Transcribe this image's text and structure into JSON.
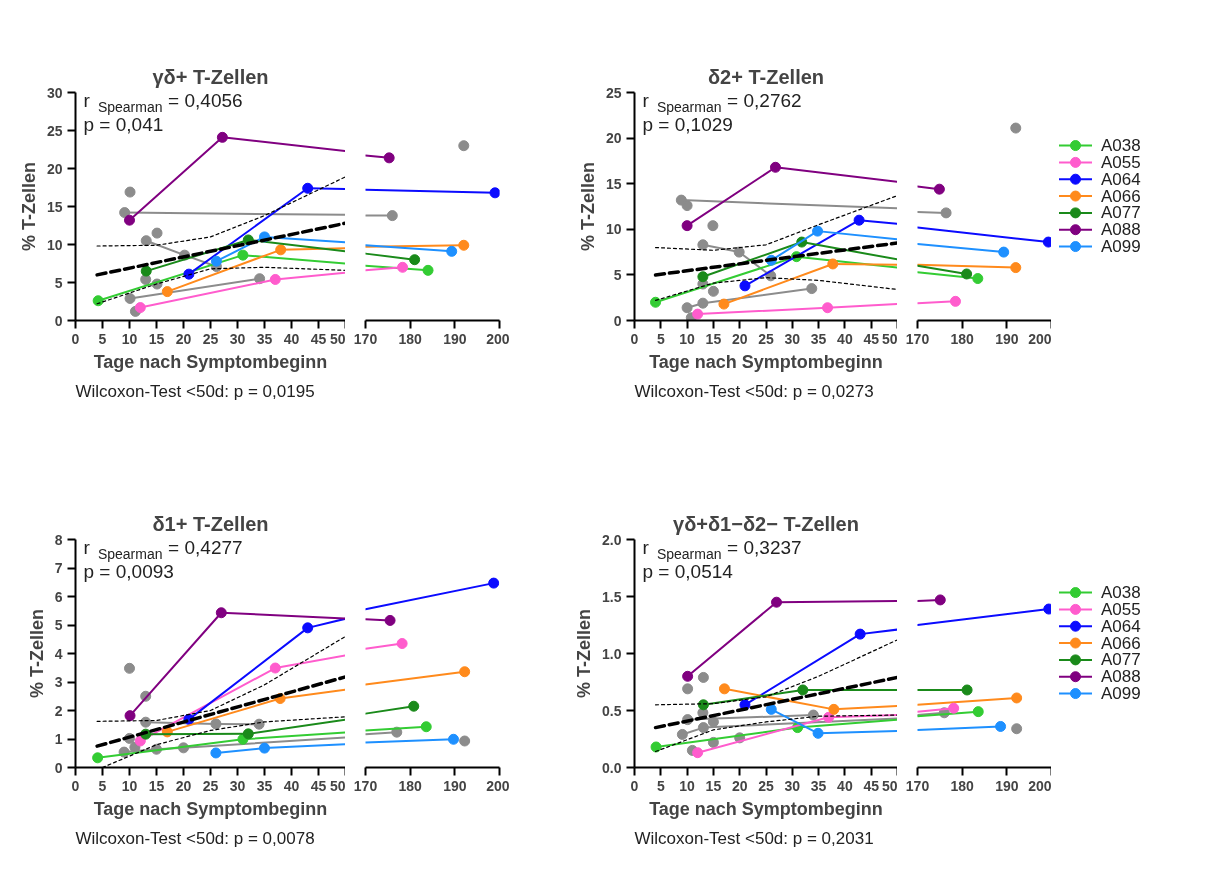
{
  "chart_data": [
    {
      "type": "line",
      "title": "γδ+ T-Zellen",
      "xlabel": "Tage nach Symptombeginn",
      "ylabel": "% T-Zellen",
      "annotations": [
        "r$_{Spearman}$ = 0,4056",
        "p = 0,041",
        "Wilcoxon-Test <50d: p = 0,0195"
      ],
      "xlim": [
        0,
        50
      ],
      "ylim": [
        0,
        30
      ],
      "xticks": [
        0,
        5,
        10,
        15,
        20,
        25,
        30,
        35,
        40,
        45,
        50
      ],
      "yticks": [
        0,
        5,
        10,
        15,
        20,
        25,
        30
      ],
      "grid": false,
      "series": [
        {
          "type": "scatter",
          "color": "#8c8c8c",
          "x": [
            10.1,
            15.1,
            13,
            15.1,
            11.1,
            9.1
          ],
          "values": [
            16.9,
            11.5,
            5.4,
            4.8,
            1.2,
            14.2
          ],
          "marker": "circle"
        },
        {
          "color": "#8c8c8c",
          "x": [
            9.1,
            50
          ],
          "values": [
            14.2,
            13.9
          ],
          "marker": "none"
        },
        {
          "color": "#8c8c8c",
          "x": [
            13.1,
            20.2,
            26.1
          ],
          "values": [
            10.5,
            8.6,
            7.1
          ],
          "marker": "circle"
        },
        {
          "color": "#8c8c8c",
          "x": [
            10.1,
            34.1
          ],
          "values": [
            2.9,
            5.5
          ],
          "marker": "circle"
        },
        {
          "color": "#33cc33",
          "x": [
            4.2,
            31
          ],
          "values": [
            2.6,
            8.6
          ],
          "marker": "circle"
        },
        {
          "color": "#33cc33",
          "x": [
            31,
            50
          ],
          "values": [
            8.6,
            7.5
          ],
          "marker": "none"
        },
        {
          "color": "#ff5ccd",
          "x": [
            12,
            37
          ],
          "values": [
            1.7,
            5.4
          ],
          "marker": "circle"
        },
        {
          "color": "#ff5ccd",
          "x": [
            37,
            50
          ],
          "values": [
            5.4,
            6.3
          ],
          "marker": "none"
        },
        {
          "color": "#0b0bff",
          "x": [
            21,
            43
          ],
          "values": [
            6.1,
            17.4
          ],
          "marker": "circle"
        },
        {
          "color": "#0b0bff",
          "x": [
            43,
            50
          ],
          "values": [
            17.4,
            17.3
          ],
          "marker": "none"
        },
        {
          "color": "#ff8a1c",
          "x": [
            17,
            38
          ],
          "values": [
            3.8,
            9.3
          ],
          "marker": "circle"
        },
        {
          "color": "#ff8a1c",
          "x": [
            38,
            50
          ],
          "values": [
            9.3,
            9.5
          ],
          "marker": "none"
        },
        {
          "color": "#1a8a1a",
          "x": [
            13.1,
            32
          ],
          "values": [
            6.5,
            10.6
          ],
          "marker": "circle"
        },
        {
          "color": "#1a8a1a",
          "x": [
            32,
            50
          ],
          "values": [
            10.6,
            9.1
          ],
          "marker": "none"
        },
        {
          "color": "#800080",
          "x": [
            10,
            27.2
          ],
          "values": [
            13.2,
            24.1
          ],
          "marker": "circle"
        },
        {
          "color": "#800080",
          "x": [
            27.2,
            50
          ],
          "values": [
            24.1,
            22.3
          ],
          "marker": "none"
        },
        {
          "color": "#1e90ff",
          "x": [
            26.1,
            35
          ],
          "values": [
            7.8,
            11.0
          ],
          "marker": "circle"
        },
        {
          "color": "#1e90ff",
          "x": [
            35,
            50
          ],
          "values": [
            11.0,
            10.3
          ],
          "marker": "none"
        },
        {
          "color": "#000000",
          "x": [
            4,
            50
          ],
          "values": [
            6.0,
            12.8
          ],
          "marker": "none",
          "line_style": "dashed"
        },
        {
          "color": "#000000",
          "x": [
            4,
            15,
            25,
            35,
            50
          ],
          "values": [
            9.8,
            9.9,
            11.0,
            13.8,
            18.9
          ],
          "marker": "none",
          "line_style": "dotted"
        },
        {
          "color": "#000000",
          "x": [
            4,
            15,
            25,
            35,
            50
          ],
          "values": [
            2.2,
            4.8,
            6.8,
            7.0,
            6.6
          ],
          "marker": "none",
          "line_style": "dotted"
        }
      ]
    },
    {
      "type": "line",
      "xlim": [
        170,
        200
      ],
      "ylim": [
        0,
        30
      ],
      "xticks": [
        170,
        180,
        190,
        200
      ],
      "tick_labels": "x",
      "grid": false,
      "series": [
        {
          "type": "scatter",
          "color": "#8c8c8c",
          "x": [
            176,
            192
          ],
          "values": [
            13.8,
            23.0
          ],
          "marker": "circle"
        },
        {
          "color": "#8c8c8c",
          "x": [
            170,
            176
          ],
          "values": [
            13.8,
            13.8
          ],
          "marker": "none"
        },
        {
          "color": "#33cc33",
          "x": [
            170,
            184
          ],
          "values": [
            7.2,
            6.6
          ],
          "marker": "none"
        },
        {
          "color": "#33cc33",
          "x": [
            184
          ],
          "values": [
            6.6
          ],
          "marker": "circle"
        },
        {
          "color": "#ff5ccd",
          "x": [
            170,
            178.3
          ],
          "values": [
            6.6,
            7.0
          ],
          "marker": "none"
        },
        {
          "color": "#ff5ccd",
          "x": [
            178.3
          ],
          "values": [
            7.0
          ],
          "marker": "circle"
        },
        {
          "color": "#0b0bff",
          "x": [
            170,
            199
          ],
          "values": [
            17.2,
            16.8
          ],
          "marker": "none"
        },
        {
          "color": "#0b0bff",
          "x": [
            199
          ],
          "values": [
            16.8
          ],
          "marker": "circle"
        },
        {
          "color": "#ff8a1c",
          "x": [
            170,
            192
          ],
          "values": [
            9.7,
            9.9
          ],
          "marker": "none"
        },
        {
          "color": "#ff8a1c",
          "x": [
            192
          ],
          "values": [
            9.9
          ],
          "marker": "circle"
        },
        {
          "color": "#1a8a1a",
          "x": [
            170,
            181
          ],
          "values": [
            8.8,
            8.0
          ],
          "marker": "none"
        },
        {
          "color": "#1a8a1a",
          "x": [
            181
          ],
          "values": [
            8.0
          ],
          "marker": "circle"
        },
        {
          "color": "#800080",
          "x": [
            170,
            175.3
          ],
          "values": [
            21.7,
            21.4
          ],
          "marker": "none"
        },
        {
          "color": "#800080",
          "x": [
            175.3
          ],
          "values": [
            21.4
          ],
          "marker": "circle"
        },
        {
          "color": "#1e90ff",
          "x": [
            170,
            189.3
          ],
          "values": [
            9.9,
            9.1
          ],
          "marker": "none"
        },
        {
          "color": "#1e90ff",
          "x": [
            189.3
          ],
          "values": [
            9.1
          ],
          "marker": "circle"
        }
      ]
    },
    {
      "type": "line",
      "title": "δ2+ T-Zellen",
      "xlabel": "Tage nach Symptombeginn",
      "ylabel": "% T-Zellen",
      "annotations": [
        "r$_{Spearman}$ = 0,2762",
        "p = 0,1029",
        "Wilcoxon-Test <50d: p = 0,0273"
      ],
      "xlim": [
        0,
        50
      ],
      "ylim": [
        0,
        25
      ],
      "xticks": [
        0,
        5,
        10,
        15,
        20,
        25,
        30,
        35,
        40,
        45,
        50
      ],
      "yticks": [
        0,
        5,
        10,
        15,
        20,
        25
      ],
      "grid": false,
      "series": [
        {
          "type": "scatter",
          "color": "#8c8c8c",
          "x": [
            10,
            14.9,
            13,
            15,
            10.8,
            8.9
          ],
          "values": [
            12.6,
            10.4,
            4.0,
            3.2,
            0.3,
            13.2
          ],
          "marker": "circle"
        },
        {
          "color": "#8c8c8c",
          "x": [
            8.9,
            50
          ],
          "values": [
            13.2,
            12.3
          ],
          "marker": "none"
        },
        {
          "color": "#8c8c8c",
          "x": [
            13,
            19.9,
            25.9
          ],
          "values": [
            8.3,
            7.5,
            4.9
          ],
          "marker": "circle"
        },
        {
          "color": "#8c8c8c",
          "x": [
            10,
            13,
            33.7
          ],
          "values": [
            1.4,
            1.9,
            3.5
          ],
          "marker": "circle"
        },
        {
          "color": "#33cc33",
          "x": [
            4,
            30.8
          ],
          "values": [
            2.0,
            7.0
          ],
          "marker": "circle"
        },
        {
          "color": "#33cc33",
          "x": [
            30.8,
            50
          ],
          "values": [
            7.0,
            5.8
          ],
          "marker": "none"
        },
        {
          "color": "#ff5ccd",
          "x": [
            12,
            36.7
          ],
          "values": [
            0.7,
            1.4
          ],
          "marker": "circle"
        },
        {
          "color": "#ff5ccd",
          "x": [
            36.7,
            50
          ],
          "values": [
            1.4,
            1.8
          ],
          "marker": "none"
        },
        {
          "color": "#0b0bff",
          "x": [
            21,
            42.7
          ],
          "values": [
            3.8,
            11.0
          ],
          "marker": "circle"
        },
        {
          "color": "#0b0bff",
          "x": [
            42.7,
            50
          ],
          "values": [
            11.0,
            10.6
          ],
          "marker": "none"
        },
        {
          "color": "#ff8a1c",
          "x": [
            17,
            37.7
          ],
          "values": [
            1.8,
            6.2
          ],
          "marker": "circle"
        },
        {
          "color": "#ff8a1c",
          "x": [
            37.7,
            50
          ],
          "values": [
            6.2,
            6.1
          ],
          "marker": "none"
        },
        {
          "color": "#1a8a1a",
          "x": [
            13,
            31.8
          ],
          "values": [
            4.8,
            8.6
          ],
          "marker": "circle"
        },
        {
          "color": "#1a8a1a",
          "x": [
            31.8,
            50
          ],
          "values": [
            8.6,
            6.7
          ],
          "marker": "none"
        },
        {
          "color": "#800080",
          "x": [
            10,
            26.8
          ],
          "values": [
            10.4,
            16.8
          ],
          "marker": "circle"
        },
        {
          "color": "#800080",
          "x": [
            26.8,
            50
          ],
          "values": [
            16.8,
            15.2
          ],
          "marker": "none"
        },
        {
          "color": "#1e90ff",
          "x": [
            26,
            34.8
          ],
          "values": [
            6.6,
            9.8
          ],
          "marker": "circle"
        },
        {
          "color": "#1e90ff",
          "x": [
            34.8,
            50
          ],
          "values": [
            9.8,
            8.9
          ],
          "marker": "none"
        },
        {
          "color": "#000000",
          "x": [
            4,
            50
          ],
          "values": [
            5.0,
            8.5
          ],
          "marker": "none",
          "line_style": "dashed"
        },
        {
          "color": "#000000",
          "x": [
            4,
            15,
            25,
            35,
            50
          ],
          "values": [
            8.0,
            7.7,
            8.3,
            10.5,
            13.7
          ],
          "marker": "none",
          "line_style": "dotted"
        },
        {
          "color": "#000000",
          "x": [
            4,
            15,
            25,
            35,
            50
          ],
          "values": [
            2.2,
            4.1,
            4.7,
            4.4,
            3.4
          ],
          "marker": "none",
          "line_style": "dotted"
        }
      ]
    },
    {
      "type": "line",
      "xlim": [
        170,
        200
      ],
      "ylim": [
        0,
        25
      ],
      "xticks": [
        170,
        180,
        190,
        200
      ],
      "tick_labels": "x",
      "grid": false,
      "legend": "right",
      "series": [
        {
          "type": "scatter",
          "color": "#8c8c8c",
          "x": [
            176.4,
            192
          ],
          "values": [
            11.8,
            21.1
          ],
          "marker": "circle"
        },
        {
          "color": "#8c8c8c",
          "x": [
            170,
            176.4
          ],
          "values": [
            11.9,
            11.8
          ],
          "marker": "none"
        },
        {
          "color": "#33cc33",
          "x": [
            170,
            183.5
          ],
          "values": [
            5.3,
            4.6
          ],
          "marker": "none"
        },
        {
          "color": "#ff5ccd",
          "x": [
            170,
            178.5
          ],
          "values": [
            1.9,
            2.1
          ],
          "marker": "none"
        },
        {
          "color": "#0b0bff",
          "x": [
            170,
            199.3
          ],
          "values": [
            10.2,
            8.6
          ],
          "marker": "none"
        },
        {
          "color": "#ff8a1c",
          "x": [
            170,
            192
          ],
          "values": [
            6.1,
            5.8
          ],
          "marker": "none"
        },
        {
          "color": "#1a8a1a",
          "x": [
            170,
            181
          ],
          "values": [
            6.0,
            5.1
          ],
          "marker": "none"
        },
        {
          "color": "#800080",
          "x": [
            170,
            174.9
          ],
          "values": [
            14.7,
            14.4
          ],
          "marker": "none"
        },
        {
          "color": "#1e90ff",
          "x": [
            170,
            189.3
          ],
          "values": [
            8.4,
            7.5
          ],
          "marker": "none"
        },
        {
          "name": "A038",
          "color": "#33cc33",
          "x": [
            183.5
          ],
          "values": [
            4.6
          ],
          "marker": "circle"
        },
        {
          "name": "A055",
          "color": "#ff5ccd",
          "x": [
            178.5
          ],
          "values": [
            2.1
          ],
          "marker": "circle"
        },
        {
          "name": "A064",
          "color": "#0b0bff",
          "x": [
            199.3
          ],
          "values": [
            8.6
          ],
          "marker": "circle"
        },
        {
          "name": "A066",
          "color": "#ff8a1c",
          "x": [
            192
          ],
          "values": [
            5.8
          ],
          "marker": "circle"
        },
        {
          "name": "A077",
          "color": "#1a8a1a",
          "x": [
            181
          ],
          "values": [
            5.1
          ],
          "marker": "circle"
        },
        {
          "name": "A088",
          "color": "#800080",
          "x": [
            174.9
          ],
          "values": [
            14.4
          ],
          "marker": "circle"
        },
        {
          "name": "A099",
          "color": "#1e90ff",
          "x": [
            189.3
          ],
          "values": [
            7.5
          ],
          "marker": "circle"
        }
      ]
    },
    {
      "type": "line",
      "title": "δ1+ T-Zellen",
      "xlabel": "Tage nach Symptombeginn",
      "ylabel": "% T-Zellen",
      "annotations": [
        "r$_{Spearman}$ = 0,4277",
        "p = 0,0093",
        "Wilcoxon-Test <50d: p = 0,0078"
      ],
      "xlim": [
        0,
        50
      ],
      "ylim": [
        0,
        8
      ],
      "xticks": [
        0,
        5,
        10,
        15,
        20,
        25,
        30,
        35,
        40,
        45,
        50
      ],
      "yticks": [
        0,
        1,
        2,
        3,
        4,
        5,
        6,
        7,
        8
      ],
      "grid": false,
      "series": [
        {
          "type": "scatter",
          "color": "#8c8c8c",
          "x": [
            10,
            13,
            11,
            10
          ],
          "values": [
            3.48,
            2.5,
            0.71,
            1.02
          ],
          "marker": "circle"
        },
        {
          "color": "#8c8c8c",
          "x": [
            13,
            26,
            34
          ],
          "values": [
            1.59,
            1.53,
            1.52
          ],
          "marker": "circle"
        },
        {
          "color": "#8c8c8c",
          "x": [
            9,
            15,
            20
          ],
          "values": [
            0.54,
            0.64,
            0.69
          ],
          "marker": "circle"
        },
        {
          "color": "#8c8c8c",
          "x": [
            20,
            50
          ],
          "values": [
            0.69,
            1.05
          ],
          "marker": "none"
        },
        {
          "color": "#33cc33",
          "x": [
            4.1,
            31
          ],
          "values": [
            0.34,
            0.99
          ],
          "marker": "circle"
        },
        {
          "color": "#33cc33",
          "x": [
            31,
            50
          ],
          "values": [
            0.99,
            1.23
          ],
          "marker": "none"
        },
        {
          "color": "#ff5ccd",
          "x": [
            12,
            37
          ],
          "values": [
            0.93,
            3.49
          ],
          "marker": "circle"
        },
        {
          "color": "#ff5ccd",
          "x": [
            37,
            50
          ],
          "values": [
            3.49,
            3.93
          ],
          "marker": "none"
        },
        {
          "color": "#0b0bff",
          "x": [
            21,
            43
          ],
          "values": [
            1.69,
            4.9
          ],
          "marker": "circle"
        },
        {
          "color": "#0b0bff",
          "x": [
            43,
            50
          ],
          "values": [
            4.9,
            5.22
          ],
          "marker": "none"
        },
        {
          "color": "#ff8a1c",
          "x": [
            17,
            37.9
          ],
          "values": [
            1.25,
            2.42
          ],
          "marker": "circle"
        },
        {
          "color": "#ff8a1c",
          "x": [
            37.9,
            50
          ],
          "values": [
            2.42,
            2.73
          ],
          "marker": "none"
        },
        {
          "color": "#1a8a1a",
          "x": [
            13,
            32
          ],
          "values": [
            1.17,
            1.18
          ],
          "marker": "circle"
        },
        {
          "color": "#1a8a1a",
          "x": [
            32,
            50
          ],
          "values": [
            1.18,
            1.68
          ],
          "marker": "none"
        },
        {
          "color": "#800080",
          "x": [
            10.1,
            27
          ],
          "values": [
            1.82,
            5.43
          ],
          "marker": "circle"
        },
        {
          "color": "#800080",
          "x": [
            27,
            50
          ],
          "values": [
            5.43,
            5.23
          ],
          "marker": "none"
        },
        {
          "color": "#1e90ff",
          "x": [
            26,
            35
          ],
          "values": [
            0.51,
            0.68
          ],
          "marker": "circle"
        },
        {
          "color": "#1e90ff",
          "x": [
            35,
            50
          ],
          "values": [
            0.68,
            0.82
          ],
          "marker": "none"
        },
        {
          "color": "#000000",
          "x": [
            4,
            50
          ],
          "values": [
            0.75,
            3.18
          ],
          "marker": "none",
          "line_style": "dashed"
        },
        {
          "color": "#000000",
          "x": [
            4,
            15,
            25,
            35,
            50
          ],
          "values": [
            1.62,
            1.65,
            2.0,
            2.9,
            4.6
          ],
          "marker": "none",
          "line_style": "dotted"
        },
        {
          "color": "#000000",
          "x": [
            5,
            15,
            25,
            35,
            50
          ],
          "values": [
            0.0,
            0.8,
            1.3,
            1.6,
            1.78
          ],
          "marker": "none",
          "line_style": "dotted"
        }
      ]
    },
    {
      "type": "line",
      "xlim": [
        170,
        200
      ],
      "ylim": [
        0,
        8
      ],
      "xticks": [
        170,
        180,
        190,
        200
      ],
      "tick_labels": "x",
      "grid": false,
      "series": [
        {
          "type": "scatter",
          "color": "#8c8c8c",
          "x": [
            177,
            192.2
          ],
          "values": [
            1.24,
            0.93
          ],
          "marker": "circle"
        },
        {
          "color": "#8c8c8c",
          "x": [
            170,
            177
          ],
          "values": [
            1.17,
            1.24
          ],
          "marker": "none"
        },
        {
          "color": "#33cc33",
          "x": [
            170,
            183.6
          ],
          "values": [
            1.3,
            1.43
          ],
          "marker": "none"
        },
        {
          "color": "#33cc33",
          "x": [
            183.6
          ],
          "values": [
            1.43
          ],
          "marker": "circle"
        },
        {
          "color": "#ff5ccd",
          "x": [
            170,
            178.2
          ],
          "values": [
            4.17,
            4.35
          ],
          "marker": "none"
        },
        {
          "color": "#ff5ccd",
          "x": [
            178.2
          ],
          "values": [
            4.35
          ],
          "marker": "circle"
        },
        {
          "color": "#0b0bff",
          "x": [
            170,
            198.7
          ],
          "values": [
            5.55,
            6.47
          ],
          "marker": "none"
        },
        {
          "color": "#0b0bff",
          "x": [
            198.7
          ],
          "values": [
            6.47
          ],
          "marker": "circle"
        },
        {
          "color": "#ff8a1c",
          "x": [
            170,
            192.2
          ],
          "values": [
            2.91,
            3.36
          ],
          "marker": "none"
        },
        {
          "color": "#ff8a1c",
          "x": [
            192.2
          ],
          "values": [
            3.36
          ],
          "marker": "circle"
        },
        {
          "color": "#1a8a1a",
          "x": [
            170,
            180.8
          ],
          "values": [
            1.89,
            2.15
          ],
          "marker": "none"
        },
        {
          "color": "#1a8a1a",
          "x": [
            180.8
          ],
          "values": [
            2.15
          ],
          "marker": "circle"
        },
        {
          "color": "#800080",
          "x": [
            170,
            175.5
          ],
          "values": [
            5.2,
            5.16
          ],
          "marker": "none"
        },
        {
          "color": "#800080",
          "x": [
            175.5
          ],
          "values": [
            5.16
          ],
          "marker": "circle"
        },
        {
          "color": "#1e90ff",
          "x": [
            170,
            189.7
          ],
          "values": [
            0.88,
            0.99
          ],
          "marker": "none"
        },
        {
          "color": "#1e90ff",
          "x": [
            189.7
          ],
          "values": [
            0.99
          ],
          "marker": "circle"
        }
      ]
    },
    {
      "type": "line",
      "title": "γδ+δ1−δ2− T-Zellen",
      "xlabel": "Tage nach Symptombeginn",
      "ylabel": "% T-Zellen",
      "annotations": [
        "r$_{Spearman}$ = 0,3237",
        "p = 0,0514",
        "Wilcoxon-Test <50d: p = 0,2031"
      ],
      "xlim": [
        0,
        50
      ],
      "ylim": [
        0,
        2
      ],
      "xticks": [
        0,
        5,
        10,
        15,
        20,
        25,
        30,
        35,
        40,
        45,
        50
      ],
      "yticks": [
        {
          "value": 0,
          "label": "0.0"
        },
        {
          "value": 0.5,
          "label": "0.5"
        },
        {
          "value": 1,
          "label": "1.0"
        },
        {
          "value": 1.5,
          "label": "1.5"
        },
        {
          "value": 2,
          "label": "2.0"
        }
      ],
      "grid": false,
      "series": [
        {
          "type": "scatter",
          "color": "#8c8c8c",
          "x": [
            13.1,
            10.1,
            13,
            15,
            15,
            11,
            20
          ],
          "values": [
            0.79,
            0.69,
            0.48,
            0.4,
            0.22,
            0.15,
            0.26
          ],
          "marker": "circle"
        },
        {
          "color": "#8c8c8c",
          "x": [
            10.1,
            34
          ],
          "values": [
            0.42,
            0.46
          ],
          "marker": "circle"
        },
        {
          "color": "#8c8c8c",
          "x": [
            9.1,
            13.1
          ],
          "values": [
            0.29,
            0.35
          ],
          "marker": "circle"
        },
        {
          "color": "#8c8c8c",
          "x": [
            13.1,
            50
          ],
          "values": [
            0.35,
            0.43
          ],
          "marker": "none"
        },
        {
          "color": "#33cc33",
          "x": [
            4.1,
            31
          ],
          "values": [
            0.18,
            0.35
          ],
          "marker": "circle"
        },
        {
          "color": "#33cc33",
          "x": [
            31,
            50
          ],
          "values": [
            0.35,
            0.42
          ],
          "marker": "none"
        },
        {
          "color": "#ff5ccd",
          "x": [
            12,
            36.9
          ],
          "values": [
            0.13,
            0.44
          ],
          "marker": "circle"
        },
        {
          "color": "#ff5ccd",
          "x": [
            36.9,
            50
          ],
          "values": [
            0.44,
            0.46
          ],
          "marker": "none"
        },
        {
          "color": "#0b0bff",
          "x": [
            21,
            42.9
          ],
          "values": [
            0.55,
            1.17
          ],
          "marker": "circle"
        },
        {
          "color": "#0b0bff",
          "x": [
            42.9,
            50
          ],
          "values": [
            1.17,
            1.21
          ],
          "marker": "none"
        },
        {
          "color": "#ff8a1c",
          "x": [
            17.1,
            37.9
          ],
          "values": [
            0.69,
            0.51
          ],
          "marker": "circle"
        },
        {
          "color": "#ff8a1c",
          "x": [
            37.9,
            50
          ],
          "values": [
            0.51,
            0.54
          ],
          "marker": "none"
        },
        {
          "color": "#1a8a1a",
          "x": [
            13.1,
            32
          ],
          "values": [
            0.55,
            0.68
          ],
          "marker": "circle"
        },
        {
          "color": "#1a8a1a",
          "x": [
            32,
            50
          ],
          "values": [
            0.68,
            0.68
          ],
          "marker": "none"
        },
        {
          "color": "#800080",
          "x": [
            10.1,
            27
          ],
          "values": [
            0.8,
            1.45
          ],
          "marker": "circle"
        },
        {
          "color": "#800080",
          "x": [
            27,
            50
          ],
          "values": [
            1.45,
            1.46
          ],
          "marker": "none"
        },
        {
          "color": "#1e90ff",
          "x": [
            26,
            34.9
          ],
          "values": [
            0.51,
            0.3
          ],
          "marker": "circle"
        },
        {
          "color": "#1e90ff",
          "x": [
            34.9,
            50
          ],
          "values": [
            0.3,
            0.32
          ],
          "marker": "none"
        },
        {
          "color": "#000000",
          "x": [
            4,
            50
          ],
          "values": [
            0.35,
            0.79
          ],
          "marker": "none",
          "line_style": "dashed"
        },
        {
          "color": "#000000",
          "x": [
            4,
            15,
            25,
            35,
            50
          ],
          "values": [
            0.55,
            0.56,
            0.62,
            0.8,
            1.12
          ],
          "marker": "none",
          "line_style": "dotted"
        },
        {
          "color": "#000000",
          "x": [
            4,
            15,
            25,
            35,
            50
          ],
          "values": [
            0.14,
            0.33,
            0.4,
            0.45,
            0.46
          ],
          "marker": "none",
          "line_style": "dotted"
        }
      ]
    },
    {
      "type": "line",
      "xlim": [
        170,
        200
      ],
      "ylim": [
        0,
        2
      ],
      "xticks": [
        170,
        180,
        190,
        200
      ],
      "tick_labels": "x",
      "grid": false,
      "legend": "right",
      "series": [
        {
          "type": "scatter",
          "color": "#8c8c8c",
          "x": [
            176,
            192.2
          ],
          "values": [
            0.48,
            0.34
          ],
          "marker": "circle"
        },
        {
          "color": "#8c8c8c",
          "x": [
            170,
            176
          ],
          "values": [
            0.46,
            0.48
          ],
          "marker": "none"
        },
        {
          "color": "#33cc33",
          "x": [
            170,
            183.6
          ],
          "values": [
            0.45,
            0.49
          ],
          "marker": "none"
        },
        {
          "color": "#ff5ccd",
          "x": [
            170,
            178.1
          ],
          "values": [
            0.49,
            0.52
          ],
          "marker": "none"
        },
        {
          "color": "#0b0bff",
          "x": [
            170,
            199.4
          ],
          "values": [
            1.25,
            1.39
          ],
          "marker": "none"
        },
        {
          "color": "#ff8a1c",
          "x": [
            170,
            192.2
          ],
          "values": [
            0.55,
            0.61
          ],
          "marker": "none"
        },
        {
          "color": "#1a8a1a",
          "x": [
            170,
            181.1
          ],
          "values": [
            0.68,
            0.68
          ],
          "marker": "none"
        },
        {
          "color": "#800080",
          "x": [
            170,
            175.1
          ],
          "values": [
            1.46,
            1.47
          ],
          "marker": "none"
        },
        {
          "color": "#1e90ff",
          "x": [
            170,
            188.6
          ],
          "values": [
            0.33,
            0.36
          ],
          "marker": "none"
        },
        {
          "name": "A038",
          "color": "#33cc33",
          "x": [
            183.6
          ],
          "values": [
            0.49
          ],
          "marker": "circle"
        },
        {
          "name": "A055",
          "color": "#ff5ccd",
          "x": [
            178.1
          ],
          "values": [
            0.52
          ],
          "marker": "circle"
        },
        {
          "name": "A064",
          "color": "#0b0bff",
          "x": [
            199.4
          ],
          "values": [
            1.39
          ],
          "marker": "circle"
        },
        {
          "name": "A066",
          "color": "#ff8a1c",
          "x": [
            192.2
          ],
          "values": [
            0.61
          ],
          "marker": "circle"
        },
        {
          "name": "A077",
          "color": "#1a8a1a",
          "x": [
            181.1
          ],
          "values": [
            0.68
          ],
          "marker": "circle"
        },
        {
          "name": "A088",
          "color": "#800080",
          "x": [
            175.1
          ],
          "values": [
            1.47
          ],
          "marker": "circle"
        },
        {
          "name": "A099",
          "color": "#1e90ff",
          "x": [
            188.6
          ],
          "values": [
            0.36
          ],
          "marker": "circle"
        }
      ]
    }
  ]
}
